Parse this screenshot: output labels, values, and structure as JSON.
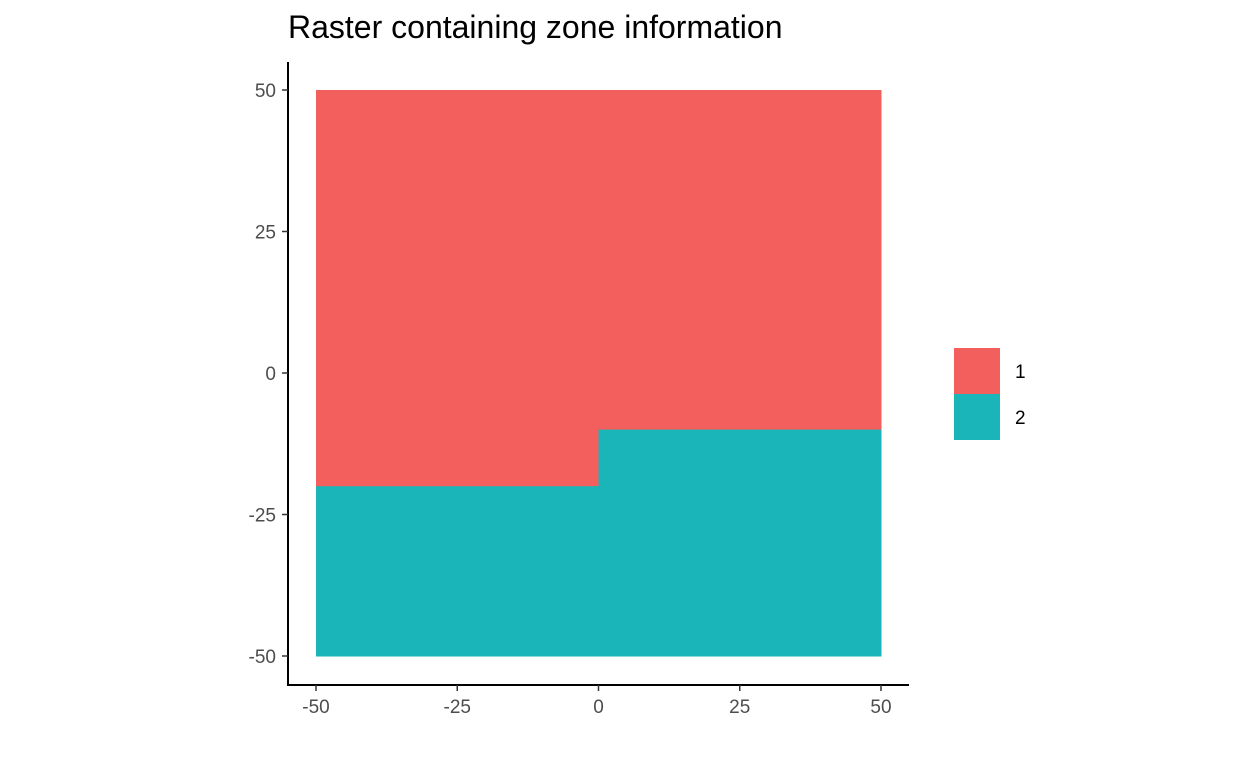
{
  "chart_data": {
    "type": "heatmap",
    "title": "Raster containing zone information",
    "xlabel": "",
    "ylabel": "",
    "xlim": [
      -55,
      55
    ],
    "ylim": [
      -55,
      55
    ],
    "x_ticks": [
      -50,
      -25,
      0,
      25,
      50
    ],
    "y_ticks": [
      -50,
      -25,
      0,
      25,
      50
    ],
    "x_tick_labels": [
      "-50",
      "-25",
      "0",
      "25",
      "50"
    ],
    "y_tick_labels": [
      "-50",
      "-25",
      "0",
      "25",
      "50"
    ],
    "grid": false,
    "legend_position": "right",
    "zones": [
      {
        "zone": "1",
        "color": "#F35F5C",
        "cells": [
          {
            "x": [
              -50,
              50
            ],
            "y": [
              -20,
              50
            ]
          },
          {
            "x": [
              0,
              50
            ],
            "y": [
              -10,
              -20
            ]
          }
        ]
      },
      {
        "zone": "2",
        "color": "#1AB5B9",
        "cells": [
          {
            "x": [
              -50,
              0
            ],
            "y": [
              -50,
              -20
            ]
          },
          {
            "x": [
              0,
              50
            ],
            "y": [
              -50,
              -10
            ]
          }
        ]
      }
    ],
    "legend": [
      {
        "label": "1",
        "color": "#F35F5C"
      },
      {
        "label": "2",
        "color": "#1AB5B9"
      }
    ]
  }
}
